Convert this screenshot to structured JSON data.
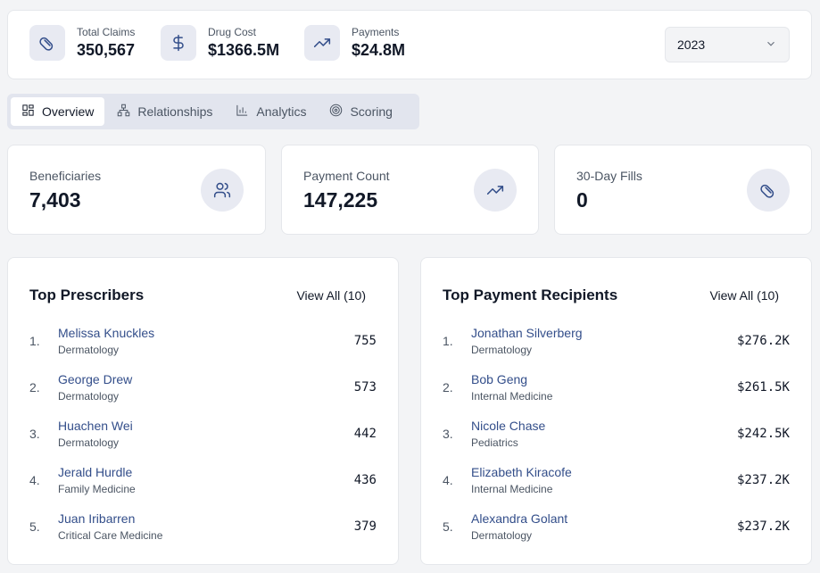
{
  "header": {
    "stats": [
      {
        "label": "Total Claims",
        "value": "350,567"
      },
      {
        "label": "Drug Cost",
        "value": "$1366.5M"
      },
      {
        "label": "Payments",
        "value": "$24.8M"
      }
    ],
    "year": "2023"
  },
  "tabs": [
    "Overview",
    "Relationships",
    "Analytics",
    "Scoring"
  ],
  "metrics": [
    {
      "label": "Beneficiaries",
      "value": "7,403"
    },
    {
      "label": "Payment Count",
      "value": "147,225"
    },
    {
      "label": "30-Day Fills",
      "value": "0"
    }
  ],
  "panels": [
    {
      "title": "Top Prescribers",
      "action": "View All (10)",
      "rows": [
        {
          "rank": "1.",
          "name": "Melissa Knuckles",
          "specialty": "Dermatology",
          "value": "755"
        },
        {
          "rank": "2.",
          "name": "George Drew",
          "specialty": "Dermatology",
          "value": "573"
        },
        {
          "rank": "3.",
          "name": "Huachen Wei",
          "specialty": "Dermatology",
          "value": "442"
        },
        {
          "rank": "4.",
          "name": "Jerald Hurdle",
          "specialty": "Family Medicine",
          "value": "436"
        },
        {
          "rank": "5.",
          "name": "Juan Iribarren",
          "specialty": "Critical Care Medicine",
          "value": "379"
        }
      ]
    },
    {
      "title": "Top Payment Recipients",
      "action": "View All (10)",
      "rows": [
        {
          "rank": "1.",
          "name": "Jonathan Silverberg",
          "specialty": "Dermatology",
          "value": "$276.2K"
        },
        {
          "rank": "2.",
          "name": "Bob Geng",
          "specialty": "Internal Medicine",
          "value": "$261.5K"
        },
        {
          "rank": "3.",
          "name": "Nicole Chase",
          "specialty": "Pediatrics",
          "value": "$242.5K"
        },
        {
          "rank": "4.",
          "name": "Elizabeth Kiracofe",
          "specialty": "Internal Medicine",
          "value": "$237.2K"
        },
        {
          "rank": "5.",
          "name": "Alexandra Golant",
          "specialty": "Dermatology",
          "value": "$237.2K"
        }
      ]
    }
  ]
}
